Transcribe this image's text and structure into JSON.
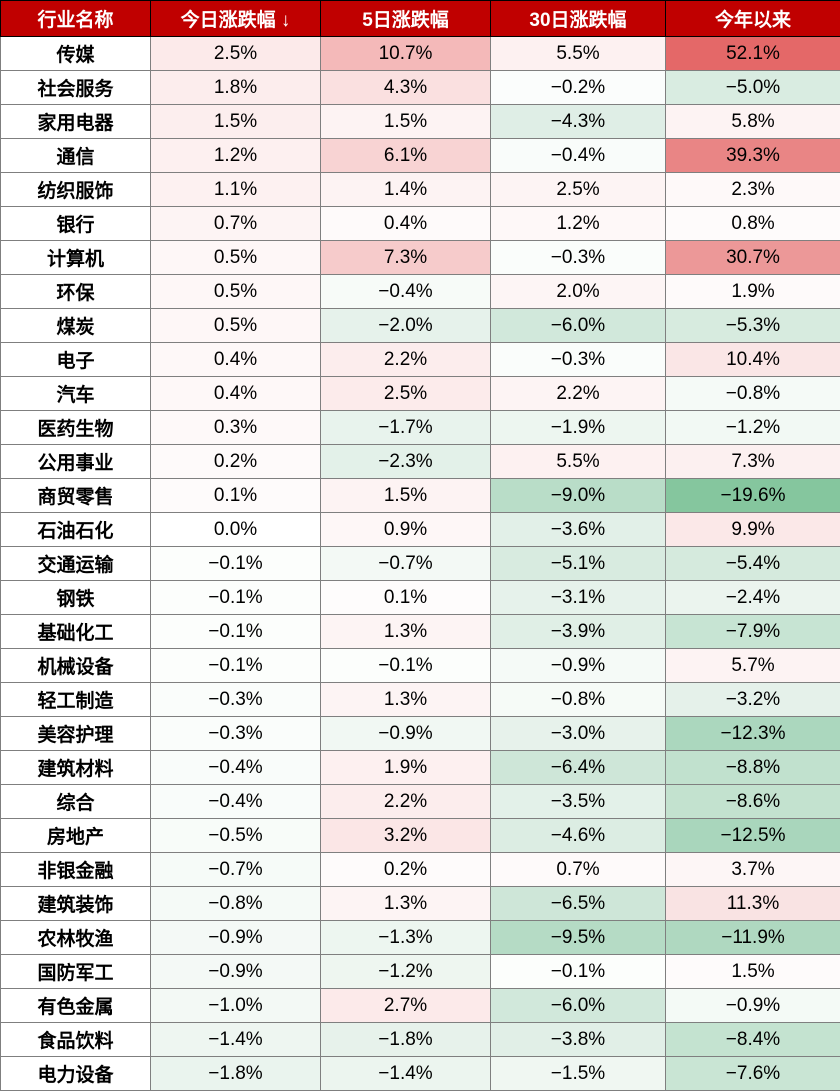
{
  "table": {
    "type": "table",
    "header_bg": "#c00000",
    "header_fg": "#ffffff",
    "header_fontsize": 19,
    "body_fontsize": 19,
    "border_color_header": "#000000",
    "border_color_body": "#7f7f7f",
    "columns": [
      {
        "label": "行业名称",
        "sortable": false
      },
      {
        "label": "今日涨跌幅 ↓",
        "sortable": true
      },
      {
        "label": "5日涨跌幅",
        "sortable": false
      },
      {
        "label": "30日涨跌幅",
        "sortable": false
      },
      {
        "label": "今年以来",
        "sortable": false
      }
    ],
    "rows": [
      {
        "name": "传媒",
        "today": "2.5%",
        "today_bg": "#fceaea",
        "d5": "10.7%",
        "d5_bg": "#f4b9b9",
        "d30": "5.5%",
        "d30_bg": "#fdf1f1",
        "ytd": "52.1%",
        "ytd_bg": "#e46868"
      },
      {
        "name": "社会服务",
        "today": "1.8%",
        "today_bg": "#fceded",
        "d5": "4.3%",
        "d5_bg": "#fae0e0",
        "d30": "−0.2%",
        "d30_bg": "#fbfdfc",
        "ytd": "−5.0%",
        "ytd_bg": "#d9ece1"
      },
      {
        "name": "家用电器",
        "today": "1.5%",
        "today_bg": "#fceeee",
        "d5": "1.5%",
        "d5_bg": "#fdf3f3",
        "d30": "−4.3%",
        "d30_bg": "#dfeee6",
        "ytd": "5.8%",
        "ytd_bg": "#fdf3f3"
      },
      {
        "name": "通信",
        "today": "1.2%",
        "today_bg": "#fdf0f0",
        "d5": "6.1%",
        "d5_bg": "#f8d3d3",
        "d30": "−0.4%",
        "d30_bg": "#f9fcfa",
        "ytd": "39.3%",
        "ytd_bg": "#e98585"
      },
      {
        "name": "纺织服饰",
        "today": "1.1%",
        "today_bg": "#fdf1f1",
        "d5": "1.4%",
        "d5_bg": "#fdf3f3",
        "d30": "2.5%",
        "d30_bg": "#fdf4f4",
        "ytd": "2.3%",
        "ytd_bg": "#fef9f9"
      },
      {
        "name": "银行",
        "today": "0.7%",
        "today_bg": "#fdf4f4",
        "d5": "0.4%",
        "d5_bg": "#fefafa",
        "d30": "1.2%",
        "d30_bg": "#fef8f8",
        "ytd": "0.8%",
        "ytd_bg": "#fefbfb"
      },
      {
        "name": "计算机",
        "today": "0.5%",
        "today_bg": "#fef7f7",
        "d5": "7.3%",
        "d5_bg": "#f6cbcb",
        "d30": "−0.3%",
        "d30_bg": "#fafdfb",
        "ytd": "30.7%",
        "ytd_bg": "#ec9898"
      },
      {
        "name": "环保",
        "today": "0.5%",
        "today_bg": "#fef7f7",
        "d5": "−0.4%",
        "d5_bg": "#f7fbf8",
        "d30": "2.0%",
        "d30_bg": "#fdf5f5",
        "ytd": "1.9%",
        "ytd_bg": "#fefafa"
      },
      {
        "name": "煤炭",
        "today": "0.5%",
        "today_bg": "#fef7f7",
        "d5": "−2.0%",
        "d5_bg": "#e6f2eb",
        "d30": "−6.0%",
        "d30_bg": "#d1e8db",
        "ytd": "−5.3%",
        "ytd_bg": "#d7ebdf"
      },
      {
        "name": "电子",
        "today": "0.4%",
        "today_bg": "#fef8f8",
        "d5": "2.2%",
        "d5_bg": "#fceded",
        "d30": "−0.3%",
        "d30_bg": "#fafdfb",
        "ytd": "10.4%",
        "ytd_bg": "#fae6e6"
      },
      {
        "name": "汽车",
        "today": "0.4%",
        "today_bg": "#fef8f8",
        "d5": "2.5%",
        "d5_bg": "#fcebeb",
        "d30": "2.2%",
        "d30_bg": "#fdf4f4",
        "ytd": "−0.8%",
        "ytd_bg": "#f5faf7"
      },
      {
        "name": "医药生物",
        "today": "0.3%",
        "today_bg": "#fef9f9",
        "d5": "−1.7%",
        "d5_bg": "#e8f3ed",
        "d30": "−1.9%",
        "d30_bg": "#edf6f0",
        "ytd": "−1.2%",
        "ytd_bg": "#f2f9f4"
      },
      {
        "name": "公用事业",
        "today": "0.2%",
        "today_bg": "#fefafa",
        "d5": "−2.3%",
        "d5_bg": "#e3f1e9",
        "d30": "5.5%",
        "d30_bg": "#fdf1f1",
        "ytd": "7.3%",
        "ytd_bg": "#fcf0f0"
      },
      {
        "name": "商贸零售",
        "today": "0.1%",
        "today_bg": "#fefbfb",
        "d5": "1.5%",
        "d5_bg": "#fdf3f3",
        "d30": "−9.0%",
        "d30_bg": "#b9ddc8",
        "ytd": "−19.6%",
        "ytd_bg": "#85c69e"
      },
      {
        "name": "石油石化",
        "today": "0.0%",
        "today_bg": "#ffffff",
        "d5": "0.9%",
        "d5_bg": "#fef7f7",
        "d30": "−3.6%",
        "d30_bg": "#e2f0e8",
        "ytd": "9.9%",
        "ytd_bg": "#fbe8e8"
      },
      {
        "name": "交通运输",
        "today": "−0.1%",
        "today_bg": "#fcfefc",
        "d5": "−0.7%",
        "d5_bg": "#f3f9f5",
        "d30": "−5.1%",
        "d30_bg": "#d8ebe0",
        "ytd": "−5.4%",
        "ytd_bg": "#d5eadd"
      },
      {
        "name": "钢铁",
        "today": "−0.1%",
        "today_bg": "#fcfefc",
        "d5": "0.1%",
        "d5_bg": "#fefcfc",
        "d30": "−3.1%",
        "d30_bg": "#e6f2eb",
        "ytd": "−2.4%",
        "ytd_bg": "#ebf4ee"
      },
      {
        "name": "基础化工",
        "today": "−0.1%",
        "today_bg": "#fcfefc",
        "d5": "1.3%",
        "d5_bg": "#fdf4f4",
        "d30": "−3.9%",
        "d30_bg": "#e0efe6",
        "ytd": "−7.9%",
        "ytd_bg": "#c7e4d3"
      },
      {
        "name": "机械设备",
        "today": "−0.1%",
        "today_bg": "#fcfefc",
        "d5": "−0.1%",
        "d5_bg": "#fcfefc",
        "d30": "−0.9%",
        "d30_bg": "#f5faf7",
        "ytd": "5.7%",
        "ytd_bg": "#fdf3f3"
      },
      {
        "name": "轻工制造",
        "today": "−0.3%",
        "today_bg": "#fafdfb",
        "d5": "1.3%",
        "d5_bg": "#fdf4f4",
        "d30": "−0.8%",
        "d30_bg": "#f6fbf7",
        "ytd": "−3.2%",
        "ytd_bg": "#e5f1ea"
      },
      {
        "name": "美容护理",
        "today": "−0.3%",
        "today_bg": "#fafdfb",
        "d5": "−0.9%",
        "d5_bg": "#f1f8f3",
        "d30": "−3.0%",
        "d30_bg": "#e7f2eb",
        "ytd": "−12.3%",
        "ytd_bg": "#abd7be"
      },
      {
        "name": "建筑材料",
        "today": "−0.4%",
        "today_bg": "#f9fcfa",
        "d5": "1.9%",
        "d5_bg": "#fdf0f0",
        "d30": "−6.4%",
        "d30_bg": "#cee6d8",
        "ytd": "−8.8%",
        "ytd_bg": "#c1e1ce"
      },
      {
        "name": "综合",
        "today": "−0.4%",
        "today_bg": "#f9fcfa",
        "d5": "2.2%",
        "d5_bg": "#fceded",
        "d30": "−3.5%",
        "d30_bg": "#e3f1e9",
        "ytd": "−8.6%",
        "ytd_bg": "#c3e2cf"
      },
      {
        "name": "房地产",
        "today": "−0.5%",
        "today_bg": "#f8fcf9",
        "d5": "3.2%",
        "d5_bg": "#fbe6e6",
        "d30": "−4.6%",
        "d30_bg": "#dcede3",
        "ytd": "−12.5%",
        "ytd_bg": "#a9d6bc"
      },
      {
        "name": "非银金融",
        "today": "−0.7%",
        "today_bg": "#f6fbf8",
        "d5": "0.2%",
        "d5_bg": "#fefbfb",
        "d30": "0.7%",
        "d30_bg": "#fefafa",
        "ytd": "3.7%",
        "ytd_bg": "#fdf6f6"
      },
      {
        "name": "建筑装饰",
        "today": "−0.8%",
        "today_bg": "#f5faf7",
        "d5": "1.3%",
        "d5_bg": "#fdf4f4",
        "d30": "−6.5%",
        "d30_bg": "#cee6d8",
        "ytd": "11.3%",
        "ytd_bg": "#f9e3e3"
      },
      {
        "name": "农林牧渔",
        "today": "−0.9%",
        "today_bg": "#f4f9f6",
        "d5": "−1.3%",
        "d5_bg": "#edf6f0",
        "d30": "−9.5%",
        "d30_bg": "#b5dbc5",
        "ytd": "−11.9%",
        "ytd_bg": "#afd8c0"
      },
      {
        "name": "国防军工",
        "today": "−0.9%",
        "today_bg": "#f4f9f6",
        "d5": "−1.2%",
        "d5_bg": "#eef6f0",
        "d30": "−0.1%",
        "d30_bg": "#fcfefc",
        "ytd": "1.5%",
        "ytd_bg": "#fefbfb"
      },
      {
        "name": "有色金属",
        "today": "−1.0%",
        "today_bg": "#f3f9f5",
        "d5": "2.7%",
        "d5_bg": "#fceaea",
        "d30": "−6.0%",
        "d30_bg": "#d1e8db",
        "ytd": "−0.9%",
        "ytd_bg": "#f4faf6"
      },
      {
        "name": "食品饮料",
        "today": "−1.4%",
        "today_bg": "#eef6f1",
        "d5": "−1.8%",
        "d5_bg": "#e7f2eb",
        "d30": "−3.8%",
        "d30_bg": "#e1efe7",
        "ytd": "−8.4%",
        "ytd_bg": "#c4e3d0"
      },
      {
        "name": "电力设备",
        "today": "−1.8%",
        "today_bg": "#eaf4ee",
        "d5": "−1.4%",
        "d5_bg": "#ecf5ef",
        "d30": "−1.5%",
        "d30_bg": "#f0f7f2",
        "ytd": "−7.6%",
        "ytd_bg": "#c9e5d4"
      }
    ]
  }
}
